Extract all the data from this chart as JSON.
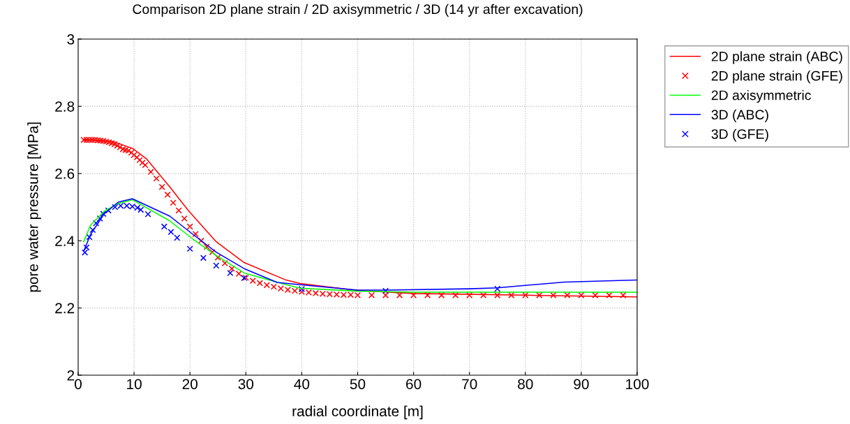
{
  "chart_data": {
    "type": "line",
    "title": "Comparison 2D plane strain / 2D axisymmetric / 3D (14 yr after excavation)",
    "xlabel": "radial coordinate [m]",
    "ylabel": "pore water pressure [MPa]",
    "xlim": [
      0,
      100
    ],
    "ylim": [
      2,
      3
    ],
    "xticks": [
      0,
      10,
      20,
      30,
      40,
      50,
      60,
      70,
      80,
      90,
      100
    ],
    "yticks": [
      2,
      2.2,
      2.4,
      2.6,
      2.8,
      3
    ],
    "grid": true,
    "legend": "top right",
    "series": [
      {
        "name": "2D plane strain (ABC)",
        "color": "#ff0000",
        "marker": "none",
        "x": [
          1,
          6,
          9.7,
          12.2,
          16.4,
          19.7,
          24.7,
          29.7,
          37.2,
          39.7,
          50,
          60,
          80,
          100
        ],
        "values": [
          2.7,
          2.696,
          2.675,
          2.644,
          2.56,
          2.49,
          2.397,
          2.335,
          2.283,
          2.273,
          2.252,
          2.243,
          2.238,
          2.233
        ]
      },
      {
        "name": "2D plane strain (GFE)",
        "type": "scatter",
        "color": "#ff0000",
        "marker": "cross",
        "x": [
          1,
          1.5,
          2,
          2.5,
          3,
          3.5,
          4,
          4.5,
          5,
          5.5,
          6,
          6.5,
          7,
          7.5,
          8,
          8.5,
          9,
          9.5,
          10,
          10.5,
          11,
          11.5,
          12,
          13,
          14,
          15,
          16,
          17,
          18,
          19,
          20,
          21,
          22,
          23,
          24,
          25,
          26.25,
          27.5,
          28.75,
          30,
          31.25,
          32.5,
          33.75,
          35,
          36.25,
          37.5,
          38.75,
          40,
          41.25,
          42.5,
          43.75,
          45,
          46.25,
          47.5,
          48.75,
          50,
          52.5,
          55,
          57.5,
          60,
          62.5,
          65,
          67.5,
          70,
          72.5,
          75,
          77.5,
          80,
          82.5,
          85,
          87.5,
          90,
          92.5,
          95,
          97.5
        ],
        "values": [
          2.7,
          2.7,
          2.7,
          2.7,
          2.7,
          2.699,
          2.698,
          2.697,
          2.695,
          2.693,
          2.69,
          2.687,
          2.683,
          2.678,
          2.672,
          2.67,
          2.668,
          2.662,
          2.655,
          2.648,
          2.64,
          2.632,
          2.625,
          2.605,
          2.585,
          2.56,
          2.537,
          2.513,
          2.49,
          2.466,
          2.442,
          2.42,
          2.4,
          2.382,
          2.366,
          2.35,
          2.333,
          2.317,
          2.302,
          2.29,
          2.281,
          2.274,
          2.268,
          2.263,
          2.258,
          2.254,
          2.251,
          2.248,
          2.246,
          2.244,
          2.242,
          2.241,
          2.24,
          2.239,
          2.239,
          2.238,
          2.238,
          2.238,
          2.238,
          2.238,
          2.238,
          2.238,
          2.238,
          2.238,
          2.238,
          2.238,
          2.238,
          2.238,
          2.238,
          2.238,
          2.238,
          2.238,
          2.238,
          2.238,
          2.238
        ]
      },
      {
        "name": "2D axisymmetric",
        "color": "#00ff00",
        "marker": "none",
        "x": [
          1,
          2.2,
          4.7,
          7.2,
          9.7,
          16.4,
          20.6,
          24.7,
          29.7,
          37.2,
          39.7,
          50,
          60,
          80,
          100
        ],
        "values": [
          2.397,
          2.446,
          2.488,
          2.511,
          2.522,
          2.459,
          2.404,
          2.356,
          2.304,
          2.269,
          2.259,
          2.25,
          2.247,
          2.247,
          2.247
        ]
      },
      {
        "name": "3D (ABC)",
        "color": "#0000ff",
        "marker": "none",
        "x": [
          1,
          2.2,
          4.7,
          7.2,
          9.7,
          16.4,
          20.6,
          24.7,
          29.7,
          35.6,
          39.7,
          50,
          55,
          70,
          75,
          87,
          100
        ],
        "values": [
          2.369,
          2.418,
          2.481,
          2.515,
          2.525,
          2.473,
          2.418,
          2.366,
          2.317,
          2.276,
          2.269,
          2.253,
          2.253,
          2.257,
          2.26,
          2.277,
          2.283
        ]
      },
      {
        "name": "3D (GFE)",
        "type": "scatter",
        "color": "#0000ff",
        "marker": "cross",
        "x": [
          1.2,
          1.5,
          2,
          2.6,
          3.2,
          3.9,
          4.5,
          5.4,
          6.6,
          7.6,
          8.7,
          9.7,
          10.6,
          11.2,
          12.5,
          15.4,
          16.6,
          17.7,
          20,
          22.4,
          24.7,
          27.2,
          29.7,
          40,
          55,
          75
        ],
        "values": [
          2.365,
          2.38,
          2.411,
          2.432,
          2.452,
          2.466,
          2.48,
          2.49,
          2.5,
          2.504,
          2.504,
          2.502,
          2.498,
          2.492,
          2.479,
          2.442,
          2.426,
          2.409,
          2.376,
          2.349,
          2.326,
          2.304,
          2.289,
          2.256,
          2.251,
          2.257
        ]
      }
    ]
  }
}
